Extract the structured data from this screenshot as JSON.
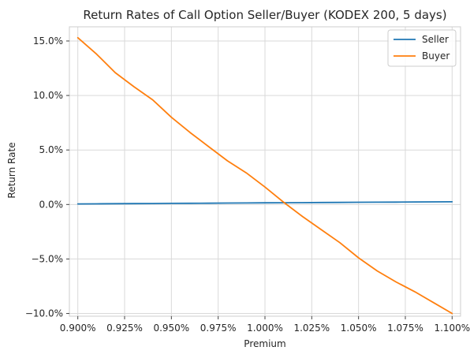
{
  "chart_data": {
    "type": "line",
    "title": "Return Rates of Call Option Seller/Buyer (KODEX 200, 5 days)",
    "xlabel": "Premium",
    "ylabel": "Return Rate",
    "x": [
      0.9,
      0.91,
      0.92,
      0.93,
      0.94,
      0.95,
      0.96,
      0.97,
      0.98,
      0.99,
      1.0,
      1.01,
      1.02,
      1.03,
      1.04,
      1.05,
      1.06,
      1.07,
      1.08,
      1.09,
      1.1
    ],
    "xlim": [
      0.8955,
      1.1045
    ],
    "ylim": [
      -10.25,
      16.3
    ],
    "x_ticks": [
      0.9,
      0.925,
      0.95,
      0.975,
      1.0,
      1.025,
      1.05,
      1.075,
      1.1
    ],
    "x_tick_labels": [
      "0.900%",
      "0.925%",
      "0.950%",
      "0.975%",
      "1.000%",
      "1.025%",
      "1.050%",
      "1.075%",
      "1.100%"
    ],
    "y_ticks": [
      -10,
      -5,
      0,
      5,
      10,
      15
    ],
    "y_tick_labels": [
      "−10.0%",
      "−5.0%",
      "0.0%",
      "5.0%",
      "10.0%",
      "15.0%"
    ],
    "grid": true,
    "legend_position": "top-right",
    "series": [
      {
        "name": "Seller",
        "color": "#1f77b4",
        "values": [
          0.05,
          0.06,
          0.07,
          0.08,
          0.09,
          0.1,
          0.11,
          0.12,
          0.13,
          0.14,
          0.15,
          0.16,
          0.17,
          0.18,
          0.19,
          0.2,
          0.21,
          0.22,
          0.23,
          0.24,
          0.25
        ]
      },
      {
        "name": "Buyer",
        "color": "#ff7f0e",
        "values": [
          15.3,
          13.8,
          12.1,
          10.8,
          9.6,
          8.0,
          6.6,
          5.3,
          4.0,
          2.9,
          1.6,
          0.2,
          -1.1,
          -2.3,
          -3.5,
          -4.9,
          -6.1,
          -7.1,
          -8.0,
          -9.0,
          -10.0
        ]
      }
    ]
  }
}
